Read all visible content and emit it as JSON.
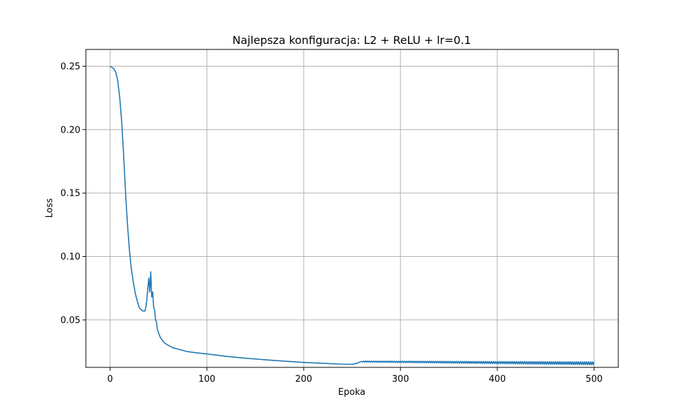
{
  "chart_data": {
    "type": "line",
    "title": "Najlepsza konfiguracja: L2 + ReLU + lr=0.1",
    "xlabel": "Epoka",
    "ylabel": "Loss",
    "xlim": [
      -25,
      525
    ],
    "ylim": [
      0.0126,
      0.2632
    ],
    "grid": true,
    "x_ticks": [
      0,
      100,
      200,
      300,
      400,
      500
    ],
    "y_ticks": [
      0.05,
      0.1,
      0.15,
      0.2,
      0.25
    ],
    "x_tick_labels": [
      "0",
      "100",
      "200",
      "300",
      "400",
      "500"
    ],
    "y_tick_labels": [
      "0.05",
      "0.10",
      "0.15",
      "0.20",
      "0.25"
    ],
    "colors": {
      "series": "#1f77b4",
      "grid": "#b0b0b0"
    },
    "series": [
      {
        "x": [
          0,
          2,
          4,
          6,
          8,
          10,
          12,
          14,
          16,
          18,
          20,
          22,
          24,
          26,
          28,
          30,
          32,
          34,
          36,
          37,
          38,
          39,
          40,
          41,
          42,
          43,
          44,
          45,
          46,
          47,
          48,
          49,
          50,
          52,
          54,
          56,
          58,
          60,
          65,
          70,
          80,
          90,
          100,
          120,
          140,
          160,
          180,
          200,
          220,
          240,
          250,
          255,
          258,
          260,
          500
        ],
        "y": [
          0.25,
          0.249,
          0.248,
          0.245,
          0.238,
          0.225,
          0.206,
          0.18,
          0.15,
          0.125,
          0.105,
          0.09,
          0.08,
          0.071,
          0.065,
          0.06,
          0.058,
          0.057,
          0.057,
          0.06,
          0.066,
          0.075,
          0.083,
          0.072,
          0.088,
          0.068,
          0.072,
          0.06,
          0.058,
          0.05,
          0.048,
          0.042,
          0.04,
          0.036,
          0.034,
          0.032,
          0.031,
          0.03,
          0.028,
          0.027,
          0.025,
          0.024,
          0.0232,
          0.0213,
          0.0198,
          0.0186,
          0.0175,
          0.0165,
          0.0158,
          0.0151,
          0.015,
          0.0158,
          0.0168,
          0.0172,
          0.0158
        ]
      }
    ]
  }
}
